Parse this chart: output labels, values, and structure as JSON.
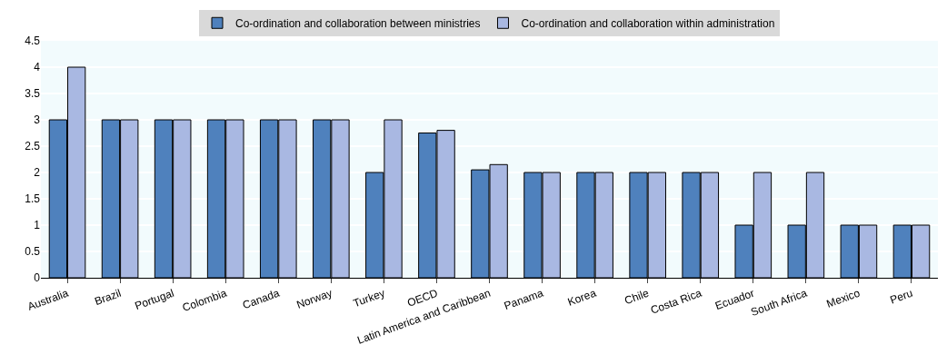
{
  "chart_data": {
    "type": "bar",
    "categories": [
      "Australia",
      "Brazil",
      "Portugal",
      "Colombia",
      "Canada",
      "Norway",
      "Turkey",
      "OECD",
      "Latin America and Caribbean",
      "Panama",
      "Korea",
      "Chile",
      "Costa Rica",
      "Ecuador",
      "South Africa",
      "Mexico",
      "Peru"
    ],
    "series": [
      {
        "name": "Co-ordination and collaboration between ministries",
        "color": "#4f81bd",
        "values": [
          3,
          3,
          3,
          3,
          3,
          3,
          2,
          2.75,
          2.05,
          2,
          2,
          2,
          2,
          1,
          1,
          1,
          1
        ]
      },
      {
        "name": "Co-ordination and collaboration within administration",
        "color": "#a9b8e2",
        "values": [
          4,
          3,
          3,
          3,
          3,
          3,
          3,
          2.8,
          2.15,
          2,
          2,
          2,
          2,
          2,
          2,
          1,
          1
        ]
      }
    ],
    "ylim": [
      0,
      4.5
    ],
    "yticks": [
      0,
      0.5,
      1,
      1.5,
      2,
      2.5,
      3,
      3.5,
      4,
      4.5
    ],
    "grid": "y",
    "legend": "top"
  }
}
